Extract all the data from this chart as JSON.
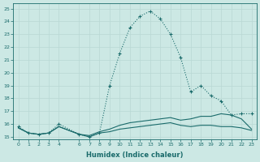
{
  "xlabel": "Humidex (Indice chaleur)",
  "ylabel": "",
  "bg_color": "#cce8e4",
  "line_color": "#1a6b6b",
  "grid_color": "#b8d8d4",
  "xlim": [
    -0.5,
    23.5
  ],
  "ylim": [
    14.8,
    25.4
  ],
  "yticks": [
    15,
    16,
    17,
    18,
    19,
    20,
    21,
    22,
    23,
    24,
    25
  ],
  "xticks": [
    0,
    1,
    2,
    3,
    4,
    6,
    7,
    8,
    9,
    10,
    11,
    12,
    13,
    14,
    15,
    16,
    17,
    18,
    19,
    20,
    21,
    22,
    23
  ],
  "series1_x": [
    0,
    1,
    2,
    3,
    4,
    6,
    7,
    8,
    9,
    10,
    11,
    12,
    13,
    14,
    15,
    16,
    17,
    18,
    19,
    20,
    21,
    22,
    23
  ],
  "series1_y": [
    15.8,
    15.3,
    15.2,
    15.3,
    16.0,
    15.2,
    15.0,
    15.3,
    19.0,
    21.5,
    23.5,
    24.4,
    24.8,
    24.2,
    23.0,
    21.2,
    18.5,
    19.0,
    18.2,
    17.8,
    16.7,
    16.8,
    16.8
  ],
  "series2_x": [
    0,
    1,
    2,
    3,
    4,
    6,
    7,
    8,
    9,
    10,
    11,
    12,
    13,
    14,
    15,
    16,
    17,
    18,
    19,
    20,
    21,
    22,
    23
  ],
  "series2_y": [
    15.7,
    15.3,
    15.2,
    15.3,
    15.8,
    15.2,
    15.0,
    15.3,
    15.4,
    15.6,
    15.7,
    15.8,
    15.9,
    16.0,
    16.1,
    15.9,
    15.8,
    15.9,
    15.9,
    15.8,
    15.8,
    15.7,
    15.5
  ],
  "series3_x": [
    0,
    1,
    2,
    3,
    4,
    6,
    7,
    8,
    9,
    10,
    11,
    12,
    13,
    14,
    15,
    16,
    17,
    18,
    19,
    20,
    21,
    22,
    23
  ],
  "series3_y": [
    15.7,
    15.3,
    15.2,
    15.3,
    15.8,
    15.2,
    15.1,
    15.4,
    15.6,
    15.9,
    16.1,
    16.2,
    16.3,
    16.4,
    16.5,
    16.3,
    16.4,
    16.6,
    16.6,
    16.8,
    16.7,
    16.4,
    15.6
  ]
}
